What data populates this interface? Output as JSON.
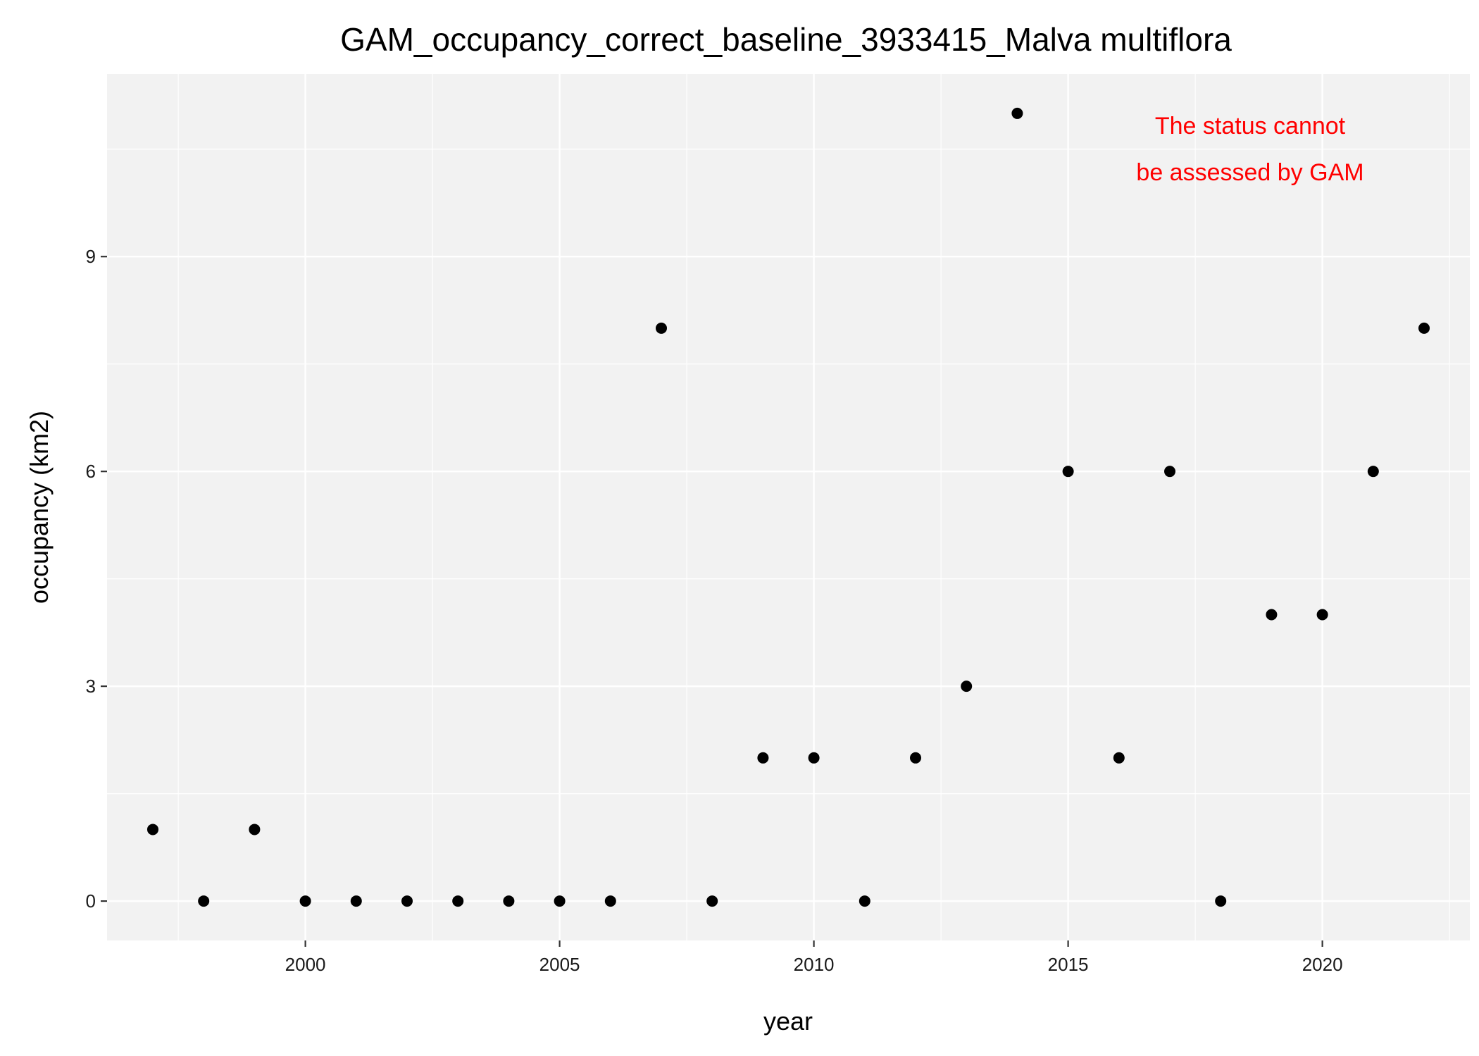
{
  "chart_data": {
    "type": "scatter",
    "title": "GAM_occupancy_correct_baseline_3933415_Malva multiflora",
    "xlabel": "year",
    "ylabel": "occupancy (km2)",
    "xlim": [
      1996.1,
      2022.9
    ],
    "ylim": [
      -0.55,
      11.55
    ],
    "x_ticks": [
      2000,
      2005,
      2010,
      2015,
      2020
    ],
    "x_minor_ticks": [
      1997.5,
      2002.5,
      2007.5,
      2012.5,
      2017.5,
      2022.5
    ],
    "y_ticks": [
      0,
      3,
      6,
      9
    ],
    "y_minor_ticks": [
      1.5,
      4.5,
      7.5,
      10.5
    ],
    "grid": true,
    "panel_color": "#f2f2f2",
    "point_color": "#000000",
    "annotation": {
      "lines": [
        "The status cannot",
        "be assessed by GAM"
      ],
      "color": "#ff0000",
      "placement": "top-right"
    },
    "points": [
      {
        "x": 1997,
        "y": 1
      },
      {
        "x": 1998,
        "y": 0
      },
      {
        "x": 1999,
        "y": 1
      },
      {
        "x": 2000,
        "y": 0
      },
      {
        "x": 2001,
        "y": 0
      },
      {
        "x": 2002,
        "y": 0
      },
      {
        "x": 2003,
        "y": 0
      },
      {
        "x": 2004,
        "y": 0
      },
      {
        "x": 2005,
        "y": 0
      },
      {
        "x": 2006,
        "y": 0
      },
      {
        "x": 2007,
        "y": 8
      },
      {
        "x": 2008,
        "y": 0
      },
      {
        "x": 2009,
        "y": 2
      },
      {
        "x": 2010,
        "y": 2
      },
      {
        "x": 2011,
        "y": 0
      },
      {
        "x": 2012,
        "y": 2
      },
      {
        "x": 2013,
        "y": 3
      },
      {
        "x": 2014,
        "y": 11
      },
      {
        "x": 2015,
        "y": 6
      },
      {
        "x": 2016,
        "y": 2
      },
      {
        "x": 2017,
        "y": 6
      },
      {
        "x": 2018,
        "y": 0
      },
      {
        "x": 2019,
        "y": 4
      },
      {
        "x": 2020,
        "y": 4
      },
      {
        "x": 2021,
        "y": 6
      },
      {
        "x": 2022,
        "y": 8
      }
    ]
  }
}
